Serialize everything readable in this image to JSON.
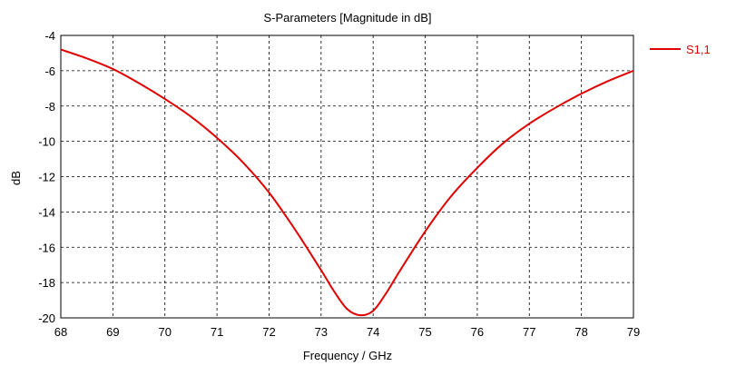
{
  "chart_data": {
    "type": "line",
    "title": "S-Parameters [Magnitude in dB]",
    "xlabel": "Frequency / GHz",
    "ylabel": "dB",
    "xlim": [
      68,
      79
    ],
    "ylim": [
      -20,
      -4
    ],
    "x_ticks": [
      "68",
      "69",
      "70",
      "71",
      "72",
      "73",
      "74",
      "75",
      "76",
      "77",
      "78",
      "79"
    ],
    "y_ticks": [
      "-4",
      "-6",
      "-8",
      "-10",
      "-12",
      "-14",
      "-16",
      "-18",
      "-20"
    ],
    "grid": true,
    "legend_position": "right",
    "series": [
      {
        "name": "S1,1",
        "color": "#e00000",
        "x": [
          68,
          68.5,
          69,
          69.5,
          70,
          70.5,
          71,
          71.5,
          72,
          72.5,
          73,
          73.25,
          73.5,
          73.75,
          74,
          74.25,
          74.5,
          75,
          75.5,
          76,
          76.5,
          77,
          77.5,
          78,
          78.5,
          79
        ],
        "y": [
          -4.8,
          -5.3,
          -5.9,
          -6.7,
          -7.6,
          -8.6,
          -9.8,
          -11.2,
          -12.9,
          -15.0,
          -17.3,
          -18.5,
          -19.5,
          -19.85,
          -19.6,
          -18.6,
          -17.4,
          -15.1,
          -13.1,
          -11.5,
          -10.1,
          -9.0,
          -8.1,
          -7.3,
          -6.6,
          -6.0
        ]
      }
    ]
  }
}
